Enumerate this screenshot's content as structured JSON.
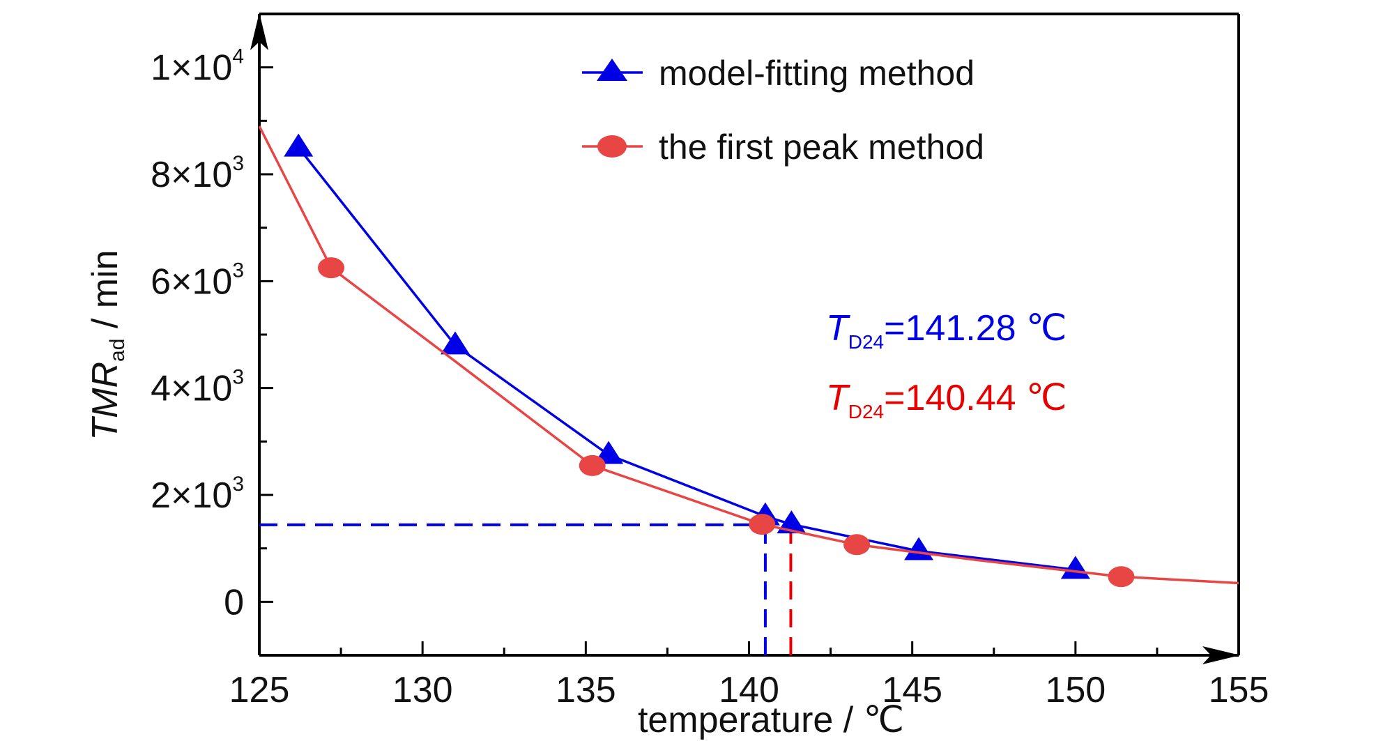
{
  "chart_data": {
    "type": "line",
    "xlabel": "temperature / ℃",
    "ylabel": {
      "base": "TMR",
      "sub": "ad",
      "unit": " / min"
    },
    "xlim": [
      125,
      155
    ],
    "ylim": [
      -1000,
      11000
    ],
    "x_ticks": [
      125,
      130,
      135,
      140,
      145,
      150,
      155
    ],
    "x_tick_labels": [
      "125",
      "130",
      "135",
      "140",
      "145",
      "150",
      "155"
    ],
    "y_ticks": [
      {
        "value": 10000,
        "mant": "1×10",
        "exp": "4"
      },
      {
        "value": 8000,
        "mant": "8×10",
        "exp": "3"
      },
      {
        "value": 6000,
        "mant": "6×10",
        "exp": "3"
      },
      {
        "value": 4000,
        "mant": "4×10",
        "exp": "3"
      },
      {
        "value": 2000,
        "mant": "2×10",
        "exp": "3"
      },
      {
        "value": 0,
        "mant": "0",
        "exp": ""
      }
    ],
    "grid": false,
    "legend_position": "top-center",
    "series": [
      {
        "name": "model-fitting method",
        "color": "#0000e6",
        "marker": "triangle",
        "x": [
          126.2,
          131.0,
          135.7,
          140.5,
          141.3,
          145.2,
          150.0
        ],
        "y": [
          8500,
          4800,
          2750,
          1600,
          1450,
          950,
          600
        ],
        "curve_x": [
          126.2,
          131.0,
          135.7,
          140.5,
          141.3,
          145.2,
          150.0
        ],
        "curve_y": [
          8500,
          4800,
          2750,
          1600,
          1450,
          950,
          600
        ]
      },
      {
        "name": "the first peak method",
        "color": "#e84545",
        "marker": "circle",
        "x": [
          127.2,
          135.2,
          140.4,
          143.3,
          151.4
        ],
        "y": [
          6250,
          2550,
          1450,
          1070,
          470
        ],
        "curve_x": [
          125.0,
          127.2,
          131.0,
          135.2,
          140.4,
          143.3,
          147.0,
          151.4,
          155.0
        ],
        "curve_y": [
          8900,
          6250,
          4500,
          2550,
          1450,
          1070,
          780,
          470,
          350
        ]
      }
    ],
    "reference_lines": [
      {
        "type": "horizontal",
        "y": 1440,
        "x_from": 125,
        "x_to": 140.44,
        "color": "#0000e6"
      },
      {
        "type": "vertical",
        "x": 140.5,
        "y_from": -1000,
        "y_to": 1440,
        "color": "#0000e6"
      },
      {
        "type": "vertical",
        "x": 141.28,
        "y_from": -1000,
        "y_to": 1440,
        "color": "#e60000"
      }
    ],
    "annotations": [
      {
        "symbol": "T",
        "sub": "D24",
        "rest": "=141.28 ℃",
        "color": "#0000e6"
      },
      {
        "symbol": "T",
        "sub": "D24",
        "rest": "=140.44 ℃",
        "color": "#e60000"
      }
    ]
  }
}
